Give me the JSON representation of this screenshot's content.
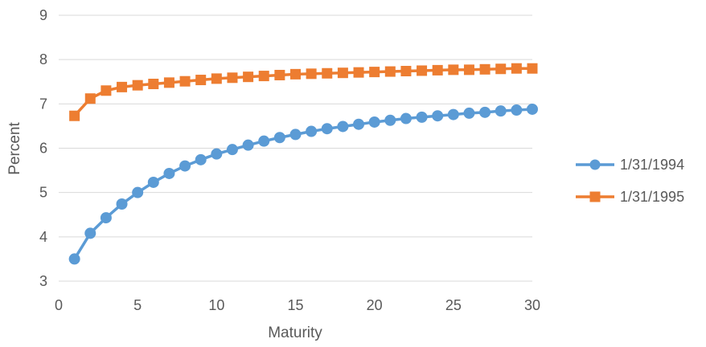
{
  "chart_data": {
    "type": "line",
    "title": "",
    "xlabel": "Maturity",
    "ylabel": "Percent",
    "xlim": [
      0,
      30
    ],
    "ylim": [
      3,
      9
    ],
    "xticks": [
      0,
      5,
      10,
      15,
      20,
      25,
      30
    ],
    "yticks": [
      3,
      4,
      5,
      6,
      7,
      8,
      9
    ],
    "grid": "horizontal",
    "legend_position": "right",
    "x": [
      1,
      2,
      3,
      4,
      5,
      6,
      7,
      8,
      9,
      10,
      11,
      12,
      13,
      14,
      15,
      16,
      17,
      18,
      19,
      20,
      21,
      22,
      23,
      24,
      25,
      26,
      27,
      28,
      29,
      30
    ],
    "series": [
      {
        "name": "1/31/1994",
        "color": "#5B9BD5",
        "marker": "circle",
        "values": [
          3.5,
          4.08,
          4.43,
          4.74,
          5.0,
          5.23,
          5.43,
          5.6,
          5.74,
          5.87,
          5.97,
          6.07,
          6.16,
          6.24,
          6.31,
          6.38,
          6.44,
          6.49,
          6.54,
          6.59,
          6.63,
          6.67,
          6.7,
          6.73,
          6.76,
          6.79,
          6.81,
          6.84,
          6.86,
          6.88
        ]
      },
      {
        "name": "1/31/1995",
        "color": "#ED7D31",
        "marker": "square",
        "values": [
          6.73,
          7.12,
          7.3,
          7.38,
          7.42,
          7.45,
          7.48,
          7.51,
          7.54,
          7.57,
          7.59,
          7.61,
          7.63,
          7.65,
          7.67,
          7.68,
          7.69,
          7.7,
          7.71,
          7.72,
          7.73,
          7.74,
          7.75,
          7.76,
          7.77,
          7.77,
          7.78,
          7.79,
          7.8,
          7.8
        ]
      }
    ]
  }
}
